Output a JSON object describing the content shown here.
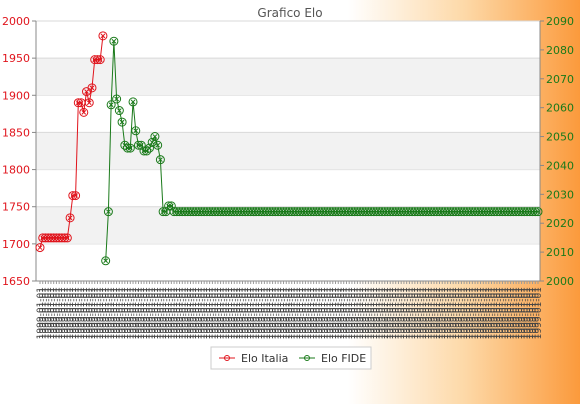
{
  "chart_data": {
    "type": "line",
    "title": "Grafico Elo",
    "xlabel": "",
    "ylabel": "",
    "ylim": [
      1650,
      2000
    ],
    "y2lim": [
      2000,
      2090
    ],
    "yticks": [
      1650,
      1700,
      1750,
      1800,
      1850,
      1900,
      1950,
      2000
    ],
    "y2ticks": [
      2000,
      2010,
      2020,
      2030,
      2040,
      2050,
      2060,
      2070,
      2080,
      2090
    ],
    "grid": "horizontal bands",
    "legend_position": "bottom-center",
    "x_tick_label_sample": "1999-01-01",
    "series": [
      {
        "name": "Elo Italia",
        "axis": "left",
        "color": "#e0141c",
        "values": [
          1695,
          1708,
          1708,
          1708,
          1708,
          1708,
          1708,
          1708,
          1708,
          1708,
          1708,
          1735,
          1765,
          1765,
          1890,
          1890,
          1877,
          1905,
          1890,
          1910,
          1948,
          1948,
          1948,
          1980
        ]
      },
      {
        "name": "Elo FIDE",
        "axis": "right",
        "color": "#1a7a1a",
        "start_index": 24,
        "values": [
          2007,
          2024,
          2061,
          2083,
          2063,
          2059,
          2055,
          2047,
          2046,
          2046,
          2062,
          2052,
          2047,
          2047,
          2045,
          2045,
          2046,
          2048,
          2050,
          2047,
          2042,
          2024,
          2024,
          2026,
          2026,
          2024,
          2024,
          2024,
          2024,
          2024,
          2024,
          2024,
          2024,
          2024,
          2024,
          2024,
          2024,
          2024,
          2024,
          2024,
          2024,
          2024,
          2024,
          2024,
          2024,
          2024,
          2024,
          2024,
          2024,
          2024,
          2024,
          2024,
          2024,
          2024,
          2024,
          2024,
          2024,
          2024,
          2024,
          2024,
          2024,
          2024,
          2024,
          2024,
          2024,
          2024,
          2024,
          2024,
          2024,
          2024,
          2024,
          2024,
          2024,
          2024,
          2024,
          2024,
          2024,
          2024,
          2024,
          2024,
          2024,
          2024,
          2024,
          2024,
          2024,
          2024,
          2024,
          2024,
          2024,
          2024,
          2024,
          2024,
          2024,
          2024,
          2024,
          2024,
          2024,
          2024,
          2024,
          2024,
          2024,
          2024,
          2024,
          2024,
          2024,
          2024,
          2024,
          2024,
          2024,
          2024,
          2024,
          2024,
          2024,
          2024,
          2024,
          2024,
          2024,
          2024,
          2024,
          2024,
          2024,
          2024,
          2024,
          2024,
          2024,
          2024,
          2024,
          2024,
          2024,
          2024,
          2024,
          2024,
          2024,
          2024,
          2024,
          2024,
          2024,
          2024,
          2024,
          2024,
          2024,
          2024,
          2024,
          2024,
          2024,
          2024,
          2024,
          2024,
          2024,
          2024,
          2024,
          2024,
          2024,
          2024,
          2024,
          2024,
          2024,
          2024,
          2024
        ]
      }
    ],
    "colors": {
      "left_axis": "#e0141c",
      "right_axis": "#1a7a1a",
      "band": "#f2f2f2",
      "gridline": "#d8d8d8"
    }
  }
}
